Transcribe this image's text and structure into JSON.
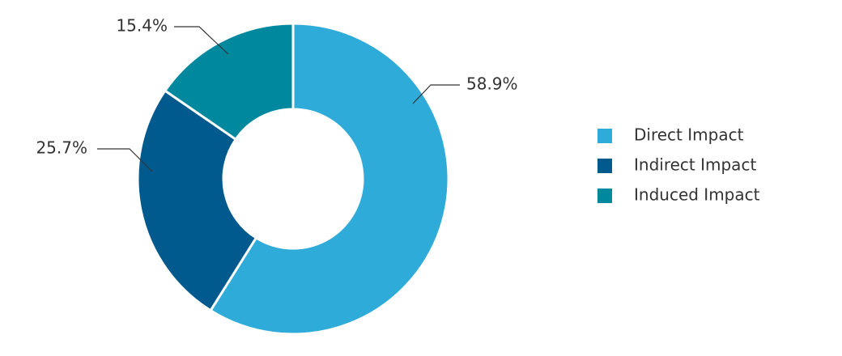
{
  "chart_data": {
    "type": "donut",
    "categories": [
      "Direct Impact",
      "Indirect Impact",
      "Induced Impact"
    ],
    "values": [
      58.9,
      25.7,
      15.4
    ],
    "value_labels": [
      "58.9%",
      "25.7%",
      "15.4%"
    ],
    "colors": [
      "#2eabd8",
      "#005a8e",
      "#00889f"
    ]
  }
}
